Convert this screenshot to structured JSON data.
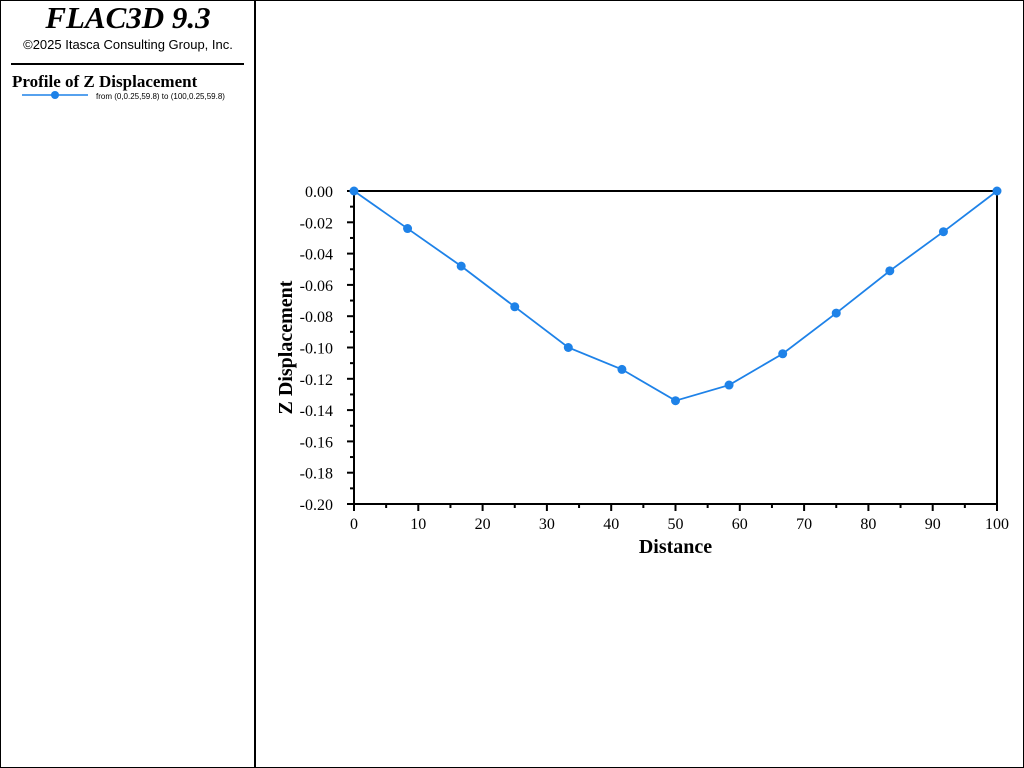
{
  "header": {
    "app_title": "FLAC3D 9.3",
    "copyright": "©2025 Itasca Consulting Group, Inc."
  },
  "legend": {
    "title": "Profile of Z Displacement",
    "entries": [
      {
        "label": "from (0,0.25,59.8) to (100,0.25,59.8)",
        "color": "#1e82e8",
        "marker": "circle"
      }
    ]
  },
  "chart_data": {
    "type": "line",
    "xlabel": "Distance",
    "ylabel": "Z Displacement",
    "xlim": [
      0,
      100
    ],
    "ylim": [
      -0.2,
      0.0
    ],
    "x_ticks": [
      "0",
      "10",
      "20",
      "30",
      "40",
      "50",
      "60",
      "70",
      "80",
      "90",
      "100"
    ],
    "y_ticks": [
      "0.00",
      "-0.02",
      "-0.04",
      "-0.06",
      "-0.08",
      "-0.10",
      "-0.12",
      "-0.14",
      "-0.16",
      "-0.18",
      "-0.20"
    ],
    "grid": false,
    "series": [
      {
        "name": "from (0,0.25,59.8) to (100,0.25,59.8)",
        "color": "#1e82e8",
        "x": [
          0,
          8.33,
          16.67,
          25,
          33.33,
          41.67,
          50,
          58.33,
          66.67,
          75,
          83.33,
          91.67,
          100
        ],
        "y": [
          0.0,
          -0.024,
          -0.048,
          -0.074,
          -0.1,
          -0.114,
          -0.134,
          -0.124,
          -0.104,
          -0.078,
          -0.051,
          -0.026,
          0.0
        ]
      }
    ]
  }
}
